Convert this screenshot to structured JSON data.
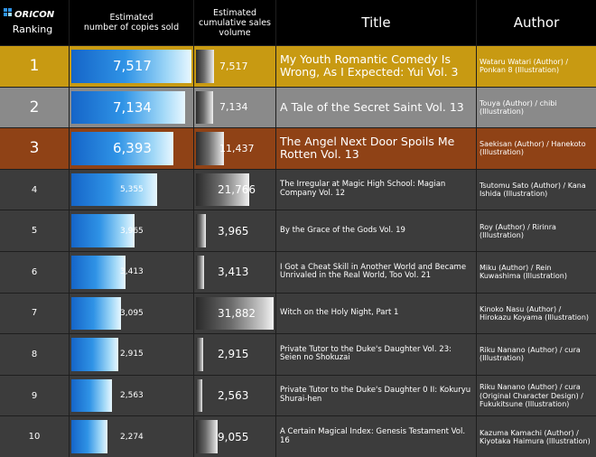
{
  "header": {
    "logo_text": "ORICON",
    "ranking_label": "Ranking",
    "col_copies_line1": "Estimated",
    "col_copies_line2": "number of copies sold",
    "col_cum_line1": "Estimated",
    "col_cum_line2": "cumulative sales",
    "col_cum_line3": "volume",
    "col_title": "Title",
    "col_author": "Author"
  },
  "colors": {
    "gold": "#c89a12",
    "silver": "#8a8a8a",
    "bronze": "#8f4216",
    "other": "#3c3c3c",
    "header": "#000000"
  },
  "chart_data": {
    "type": "table",
    "columns": [
      "Ranking",
      "Estimated number of copies sold",
      "Estimated cumulative sales volume",
      "Title",
      "Author"
    ],
    "rows": [
      {
        "rank": "1",
        "copies": "7,517",
        "copies_value": 7517,
        "cumulative": "7,517",
        "cumulative_value": 7517,
        "title": "My Youth Romantic Comedy Is Wrong, As I Expected: Yui Vol. 3",
        "author": "Wataru Watari (Author) / Ponkan 8 (Illustration)"
      },
      {
        "rank": "2",
        "copies": "7,134",
        "copies_value": 7134,
        "cumulative": "7,134",
        "cumulative_value": 7134,
        "title": "A Tale of the Secret Saint Vol. 13",
        "author": "Touya (Author) / chibi (Illustration)"
      },
      {
        "rank": "3",
        "copies": "6,393",
        "copies_value": 6393,
        "cumulative": "11,437",
        "cumulative_value": 11437,
        "title": "The Angel Next Door Spoils Me Rotten Vol. 13",
        "author": "Saekisan (Author) / Hanekoto (Illustration)"
      },
      {
        "rank": "4",
        "copies": "5,355",
        "copies_value": 5355,
        "cumulative": "21,766",
        "cumulative_value": 21766,
        "title": "The Irregular at Magic High School: Magian Company Vol. 12",
        "author": "Tsutomu Sato (Author) / Kana Ishida (Illustration)"
      },
      {
        "rank": "5",
        "copies": "3,965",
        "copies_value": 3965,
        "cumulative": "3,965",
        "cumulative_value": 3965,
        "title": "By the Grace of the Gods Vol. 19",
        "author": "Roy (Author) / Ririnra (Illustration)"
      },
      {
        "rank": "6",
        "copies": "3,413",
        "copies_value": 3413,
        "cumulative": "3,413",
        "cumulative_value": 3413,
        "title": "I Got a Cheat Skill in Another World and Became Unrivaled in the Real World, Too Vol. 21",
        "author": "Miku (Author) / Rein Kuwashima (Illustration)"
      },
      {
        "rank": "7",
        "copies": "3,095",
        "copies_value": 3095,
        "cumulative": "31,882",
        "cumulative_value": 31882,
        "title": "Witch on the Holy Night, Part 1",
        "author": "Kinoko Nasu (Author) / Hirokazu Koyama (Illustration)"
      },
      {
        "rank": "8",
        "copies": "2,915",
        "copies_value": 2915,
        "cumulative": "2,915",
        "cumulative_value": 2915,
        "title": "Private Tutor to the Duke's Daughter Vol. 23: Seien no Shokuzai",
        "author": "Riku Nanano (Author) / cura (Illustration)"
      },
      {
        "rank": "9",
        "copies": "2,563",
        "copies_value": 2563,
        "cumulative": "2,563",
        "cumulative_value": 2563,
        "title": "Private Tutor to the Duke's Daughter 0 II: Kokuryu Shurai-hen",
        "author": "Riku Nanano (Author) / cura (Original Character Design) / Fukukitsune (Illustration)"
      },
      {
        "rank": "10",
        "copies": "2,274",
        "copies_value": 2274,
        "cumulative": "9,055",
        "cumulative_value": 9055,
        "title": "A Certain Magical Index: Genesis Testament Vol. 16",
        "author": "Kazuma Kamachi (Author) / Kiyotaka Haimura (Illustration)"
      }
    ]
  }
}
